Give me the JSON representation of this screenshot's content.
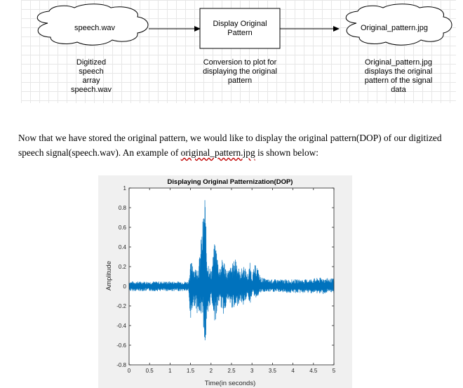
{
  "diagram": {
    "nodes": {
      "input": "speech.wav",
      "process": "Display Original Pattern",
      "output": "Original_pattern.jpg"
    },
    "captions": {
      "input": "Digitized speech array speech.wav",
      "process": "Conversion  to plot for displaying the original pattern",
      "output": "Original_pattern.jpg displays the original pattern of the signal data"
    }
  },
  "paragraph": {
    "text_before": "Now that we have stored the original pattern, we would like to display the original pattern(DOP) of our digitized speech signal(speech.wav). An example of ",
    "link": "original_pattern.jpg",
    "text_after": " is shown below:"
  },
  "chart_data": {
    "type": "line",
    "title": "Displaying Original Patternization(DOP)",
    "xlabel": "Time(in seconds)",
    "ylabel": "Amplitude",
    "xlim": [
      0,
      5
    ],
    "ylim": [
      -0.8,
      1
    ],
    "xticks": [
      "0",
      "0.5",
      "1",
      "1.5",
      "2",
      "2.5",
      "3",
      "3.5",
      "4",
      "4.5",
      "5"
    ],
    "yticks": [
      "-0.8",
      "-0.6",
      "-0.4",
      "-0.2",
      "0",
      "0.2",
      "0.4",
      "0.6",
      "0.8",
      "1"
    ],
    "series_color": "#0072bd",
    "envelope": {
      "x": [
        0,
        0.3,
        0.7,
        1.0,
        1.3,
        1.45,
        1.5,
        1.55,
        1.6,
        1.7,
        1.8,
        1.85,
        1.9,
        2.0,
        2.1,
        2.2,
        2.3,
        2.4,
        2.55,
        2.6,
        2.7,
        2.8,
        2.9,
        2.95,
        3.0,
        3.1,
        3.2,
        3.3,
        3.4,
        3.5,
        3.7,
        3.9,
        4.1,
        4.3,
        4.5,
        4.7,
        4.9,
        5.0
      ],
      "upper": [
        0.05,
        0.05,
        0.05,
        0.05,
        0.05,
        0.05,
        0.23,
        0.28,
        0.18,
        0.22,
        0.68,
        1.0,
        0.32,
        0.15,
        0.48,
        0.2,
        0.3,
        0.15,
        0.25,
        0.33,
        0.15,
        0.22,
        0.12,
        0.24,
        0.12,
        0.25,
        0.1,
        0.08,
        0.07,
        0.07,
        0.07,
        0.07,
        0.07,
        0.07,
        0.08,
        0.09,
        0.08,
        0.08
      ],
      "lower": [
        -0.05,
        -0.05,
        -0.05,
        -0.05,
        -0.05,
        -0.05,
        -0.38,
        -0.22,
        -0.2,
        -0.32,
        -0.28,
        -0.67,
        -0.48,
        -0.1,
        -0.38,
        -0.15,
        -0.3,
        -0.15,
        -0.25,
        -0.25,
        -0.15,
        -0.2,
        -0.08,
        -0.2,
        -0.08,
        -0.12,
        -0.07,
        -0.06,
        -0.06,
        -0.06,
        -0.06,
        -0.07,
        -0.07,
        -0.07,
        -0.07,
        -0.08,
        -0.07,
        -0.07
      ]
    }
  }
}
